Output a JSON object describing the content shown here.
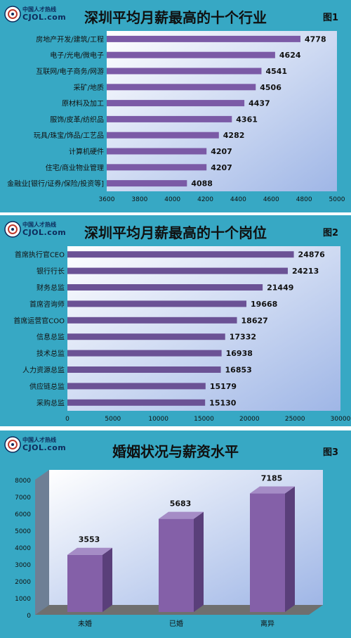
{
  "logo": {
    "cn": "中国人才热线",
    "en": "CJOL.com"
  },
  "panels": [
    {
      "title": "深圳平均月薪最高的十个行业",
      "tag": "图1"
    },
    {
      "title": "深圳平均月薪最高的十个岗位",
      "tag": "图2"
    },
    {
      "title": "婚姻状况与薪资水平",
      "tag": "图3"
    }
  ],
  "chart_data": [
    {
      "type": "bar",
      "orientation": "horizontal",
      "title": "深圳平均月薪最高的十个行业",
      "categories": [
        "房地产开发/建筑/工程",
        "电子/光电/微电子",
        "互联网/电子商务/网游",
        "采矿/地质",
        "原材料及加工",
        "服饰/皮革/纺织品",
        "玩具/珠宝/饰品/工艺品",
        "计算机硬件",
        "住宅/商业物业管理",
        "金融业[银行/证券/保险/投资等]"
      ],
      "values": [
        4778,
        4624,
        4541,
        4506,
        4437,
        4361,
        4282,
        4207,
        4207,
        4088
      ],
      "xlim": [
        3600,
        5000
      ],
      "ticks": [
        3600,
        3800,
        4000,
        4200,
        4400,
        4600,
        4800,
        5000
      ],
      "color": "#7b5aa6"
    },
    {
      "type": "bar",
      "orientation": "horizontal",
      "title": "深圳平均月薪最高的十个岗位",
      "categories": [
        "首席执行官CEO",
        "银行行长",
        "财务总监",
        "首席咨询师",
        "首席运营官COO",
        "信息总监",
        "技术总监",
        "人力资源总监",
        "供应链总监",
        "采购总监"
      ],
      "values": [
        24876,
        24213,
        21449,
        19668,
        18627,
        17332,
        16938,
        16853,
        15179,
        15130
      ],
      "xlim": [
        0,
        30000
      ],
      "ticks": [
        0,
        5000,
        10000,
        15000,
        20000,
        25000,
        30000
      ],
      "color": "#6b5295"
    },
    {
      "type": "bar",
      "orientation": "vertical",
      "style": "3d",
      "title": "婚姻状况与薪资水平",
      "categories": [
        "未婚",
        "已婚",
        "离异"
      ],
      "values": [
        3553,
        5683,
        7185
      ],
      "ylim": [
        0,
        8000
      ],
      "ticks": [
        0,
        1000,
        2000,
        3000,
        4000,
        5000,
        6000,
        7000,
        8000
      ],
      "color": "#8460a8"
    }
  ]
}
